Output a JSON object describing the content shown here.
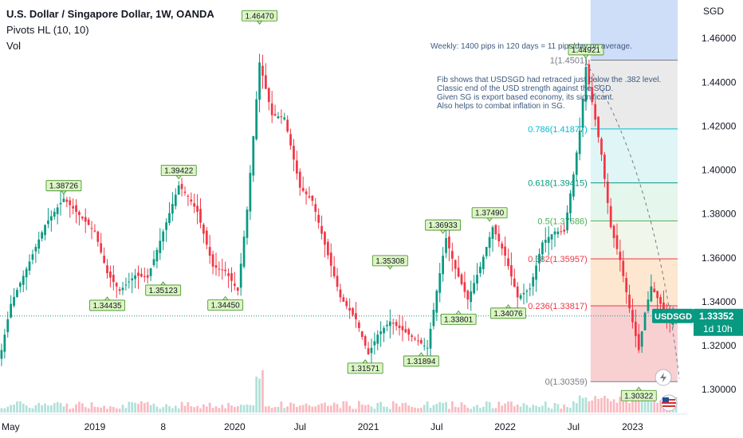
{
  "legend": {
    "title": "U.S. Dollar / Singapore Dollar, 1W, OANDA",
    "indicator": "Pivots HL (10, 10)",
    "volume": "Vol"
  },
  "currency_label": "SGD",
  "price_tag": {
    "symbol": "USDSGD",
    "price": "1.33352",
    "countdown": "1d 10h"
  },
  "colors": {
    "up": "#089981",
    "down": "#f23645",
    "pivot_fill": "#dcf5c4",
    "pivot_stroke": "#3b8c1e",
    "fib_0": "#f7c8ca",
    "fib_0236": "#fde3c8",
    "fib_0382": "#eef5e6",
    "fib_05": "#e0f4ea",
    "fib_0618": "#d9f3f5",
    "fib_0786": "#e6e6e6",
    "fib_1": "#c9d9f7"
  },
  "notes": {
    "line1": "Weekly: 1400 pips in 120 days = 11 pips/day on average.",
    "line2": "Fib shows that USDSGD had retraced just below the .382 level.",
    "line3": "Classic end of the USD strength against the SGD.",
    "line4": "Given SG is export based economy, its significant.",
    "line5": "Also helps to combat inflation in SG."
  },
  "chart_data": {
    "type": "candlestick",
    "y_ticks": [
      "1.46000",
      "1.44000",
      "1.42000",
      "1.40000",
      "1.38000",
      "1.36000",
      "1.34000",
      "1.32000",
      "1.30000"
    ],
    "y_tick_values": [
      1.46,
      1.44,
      1.42,
      1.4,
      1.38,
      1.36,
      1.34,
      1.32,
      1.3
    ],
    "ylim": [
      1.2888,
      1.4775
    ],
    "x_ticks": [
      "May",
      "2019",
      "8",
      "2020",
      "Jul",
      "2021",
      "Jul",
      "2022",
      "Jul",
      "2023"
    ],
    "x_tick_weeks": [
      0,
      30,
      52,
      75,
      96,
      118,
      140,
      162,
      184,
      203
    ],
    "weeks_total": 218,
    "anchors": [
      [
        0,
        1.318
      ],
      [
        3,
        1.339
      ],
      [
        8,
        1.355
      ],
      [
        14,
        1.375
      ],
      [
        20,
        1.387
      ],
      [
        26,
        1.378
      ],
      [
        30,
        1.372
      ],
      [
        34,
        1.353
      ],
      [
        38,
        1.345
      ],
      [
        43,
        1.352
      ],
      [
        47,
        1.351
      ],
      [
        52,
        1.372
      ],
      [
        57,
        1.393
      ],
      [
        60,
        1.388
      ],
      [
        63,
        1.381
      ],
      [
        68,
        1.356
      ],
      [
        72,
        1.354
      ],
      [
        76,
        1.345
      ],
      [
        79,
        1.382
      ],
      [
        83,
        1.449
      ],
      [
        87,
        1.425
      ],
      [
        91,
        1.424
      ],
      [
        96,
        1.392
      ],
      [
        100,
        1.386
      ],
      [
        104,
        1.366
      ],
      [
        109,
        1.342
      ],
      [
        114,
        1.332
      ],
      [
        118,
        1.316
      ],
      [
        121,
        1.325
      ],
      [
        125,
        1.331
      ],
      [
        129,
        1.327
      ],
      [
        133,
        1.323
      ],
      [
        137,
        1.319
      ],
      [
        140,
        1.345
      ],
      [
        143,
        1.369
      ],
      [
        146,
        1.355
      ],
      [
        150,
        1.341
      ],
      [
        154,
        1.356
      ],
      [
        158,
        1.374
      ],
      [
        162,
        1.361
      ],
      [
        166,
        1.342
      ],
      [
        170,
        1.346
      ],
      [
        174,
        1.367
      ],
      [
        178,
        1.372
      ],
      [
        181,
        1.372
      ],
      [
        184,
        1.398
      ],
      [
        186,
        1.418
      ],
      [
        188,
        1.447
      ],
      [
        190,
        1.431
      ],
      [
        193,
        1.407
      ],
      [
        196,
        1.374
      ],
      [
        199,
        1.359
      ],
      [
        202,
        1.337
      ],
      [
        205,
        1.318
      ],
      [
        207,
        1.335
      ],
      [
        209,
        1.347
      ],
      [
        212,
        1.339
      ],
      [
        215,
        1.331
      ],
      [
        217,
        1.333
      ]
    ],
    "pivots": [
      {
        "label": "1.38726",
        "week": 20,
        "value": 1.38726,
        "type": "high"
      },
      {
        "label": "1.39422",
        "week": 57,
        "value": 1.39422,
        "type": "high"
      },
      {
        "label": "1.46470",
        "week": 83,
        "value": 1.4647,
        "type": "high"
      },
      {
        "label": "1.35308",
        "week": 125,
        "value": 1.35308,
        "type": "high"
      },
      {
        "label": "1.36933",
        "week": 142,
        "value": 1.36933,
        "type": "high"
      },
      {
        "label": "1.37490",
        "week": 157,
        "value": 1.3749,
        "type": "high"
      },
      {
        "label": "1.44921",
        "week": 188,
        "value": 1.44921,
        "type": "high"
      },
      {
        "label": "1.34435",
        "week": 34,
        "value": 1.34435,
        "type": "low"
      },
      {
        "label": "1.35123",
        "week": 52,
        "value": 1.35123,
        "type": "low"
      },
      {
        "label": "1.34450",
        "week": 72,
        "value": 1.3445,
        "type": "low"
      },
      {
        "label": "1.31571",
        "week": 117,
        "value": 1.31571,
        "type": "low"
      },
      {
        "label": "1.31894",
        "week": 135,
        "value": 1.31894,
        "type": "low"
      },
      {
        "label": "1.33801",
        "week": 147,
        "value": 1.33801,
        "type": "low"
      },
      {
        "label": "1.34076",
        "week": 163,
        "value": 1.34076,
        "type": "low"
      },
      {
        "label": "1.30322",
        "week": 205,
        "value": 1.30322,
        "type": "low"
      }
    ],
    "fib_levels": [
      {
        "label": "1(1.4501)",
        "ratio": 1,
        "value": 1.4501,
        "color_key": "fib_1",
        "text_color": "#787b86"
      },
      {
        "label": "0.786(1.41877)",
        "ratio": 0.786,
        "value": 1.41877,
        "color_key": "fib_0786",
        "text_color": "#00bcd4"
      },
      {
        "label": "0.618(1.39415)",
        "ratio": 0.618,
        "value": 1.39415,
        "color_key": "fib_0618",
        "text_color": "#089981"
      },
      {
        "label": "0.5(1.37686)",
        "ratio": 0.5,
        "value": 1.37686,
        "color_key": "fib_05",
        "text_color": "#4caf50"
      },
      {
        "label": "0.382(1.35957)",
        "ratio": 0.382,
        "value": 1.35957,
        "color_key": "fib_0382",
        "text_color": "#f23645"
      },
      {
        "label": "0.236(1.33817)",
        "ratio": 0.236,
        "value": 1.33817,
        "color_key": "fib_0236",
        "text_color": "#f23645"
      },
      {
        "label": "0(1.30359)",
        "ratio": 0,
        "value": 1.30359,
        "color_key": "fib_0",
        "text_color": "#787b86"
      }
    ],
    "fib_start_week": 190,
    "current_price": 1.33352
  }
}
